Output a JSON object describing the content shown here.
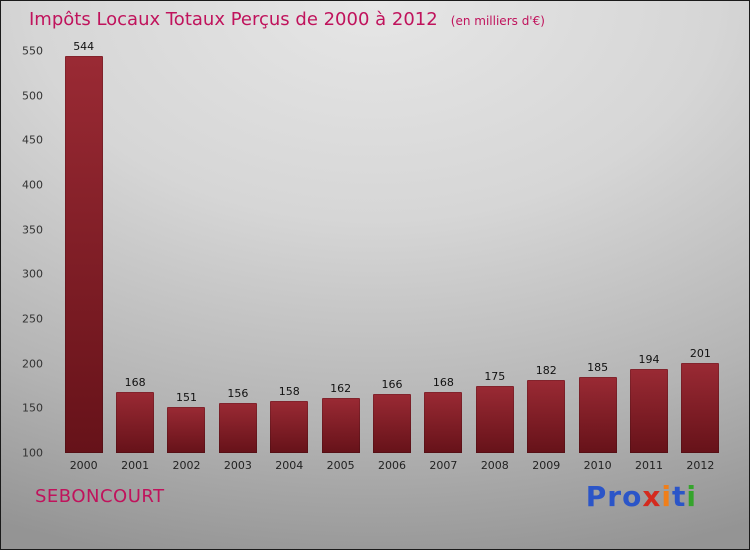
{
  "chart_data": {
    "type": "bar",
    "title": "Impôts Locaux Totaux Perçus de 2000 à 2012",
    "subtitle": "(en milliers d'€)",
    "categories": [
      "2000",
      "2001",
      "2002",
      "2003",
      "2004",
      "2005",
      "2006",
      "2007",
      "2008",
      "2009",
      "2010",
      "2011",
      "2012"
    ],
    "values": [
      544,
      168,
      151,
      156,
      158,
      162,
      166,
      168,
      175,
      182,
      185,
      194,
      201
    ],
    "xlabel": "",
    "ylabel": "",
    "ylim": [
      100,
      550
    ],
    "ytick_step": 50,
    "grid": false,
    "legend": null,
    "value_labels": true
  },
  "footer": {
    "commune": "SEBONCOURT",
    "logo": {
      "text": "Proxiti",
      "letters": [
        {
          "ch": "P",
          "color": "#2b55c8"
        },
        {
          "ch": "r",
          "color": "#2b55c8"
        },
        {
          "ch": "o",
          "color": "#2b55c8"
        },
        {
          "ch": "x",
          "color": "#d42a1e"
        },
        {
          "ch": "i",
          "color": "#f07f1a"
        },
        {
          "ch": "t",
          "color": "#2b55c8"
        },
        {
          "ch": "i",
          "color": "#35a42c"
        }
      ]
    }
  },
  "colors": {
    "title": "#c0135c",
    "commune": "#c0135c",
    "bar_top": "#9a2a34",
    "bar_bottom": "#661219",
    "tick_label": "#333333",
    "value_label": "#111111"
  }
}
